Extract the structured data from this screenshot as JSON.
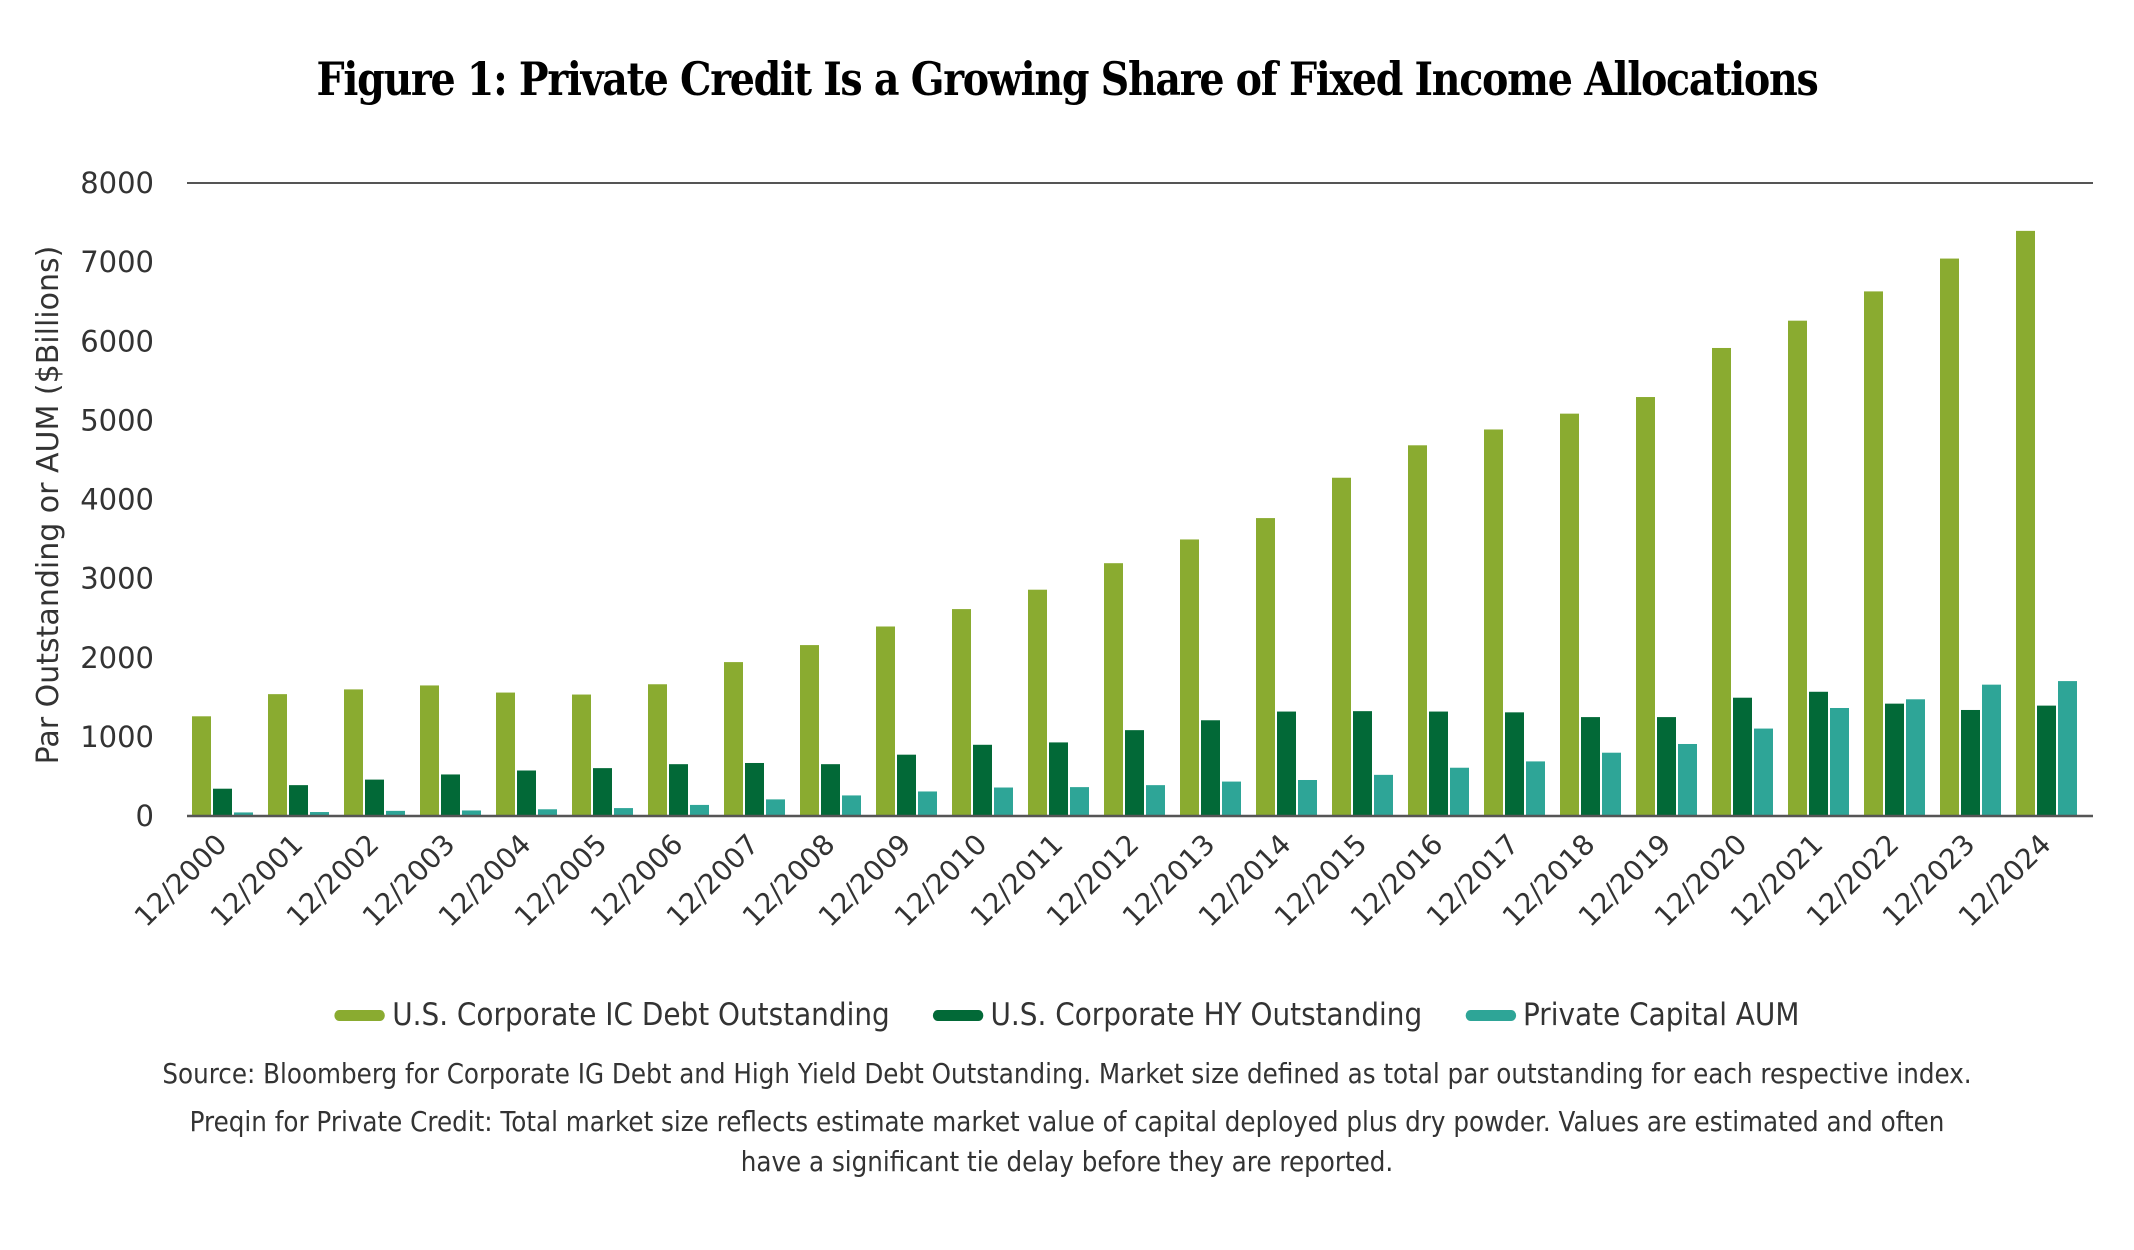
{
  "title": "Figure 1: Private Credit Is a Growing Share of Fixed Income Allocations",
  "colors": {
    "ig": "#8AAB30",
    "hy": "#026937",
    "pc": "#2EA597",
    "axis": "#555555",
    "text": "#333333"
  },
  "chart_data": {
    "type": "bar",
    "title": "Figure 1: Private Credit Is a Growing Share of Fixed Income Allocations",
    "xlabel": "",
    "ylabel": "Par Outstanding or AUM ($Billions)",
    "ylim": [
      0,
      8000
    ],
    "yticks": [
      0,
      1000,
      2000,
      3000,
      4000,
      5000,
      6000,
      7000,
      8000
    ],
    "grid": "top border line only",
    "legend": "bottom-center",
    "categories": [
      "12/2000",
      "12/2001",
      "12/2002",
      "12/2003",
      "12/2004",
      "12/2005",
      "12/2006",
      "12/2007",
      "12/2008",
      "12/2009",
      "12/2010",
      "12/2011",
      "12/2012",
      "12/2013",
      "12/2014",
      "12/2015",
      "12/2016",
      "12/2017",
      "12/2018",
      "12/2019",
      "12/2020",
      "12/2021",
      "12/2022",
      "12/2023",
      "12/2024"
    ],
    "series": [
      {
        "name": "U.S. Corporate IC Debt Outstanding",
        "key": "ig",
        "values": [
          1260,
          1540,
          1600,
          1650,
          1560,
          1535,
          1665,
          1945,
          2160,
          2395,
          2615,
          2860,
          3195,
          3495,
          3765,
          4275,
          4685,
          4885,
          5085,
          5295,
          5915,
          6260,
          6630,
          7045,
          7395
        ]
      },
      {
        "name": "U.S. Corporate HY Outstanding",
        "key": "hy",
        "values": [
          345,
          390,
          460,
          525,
          575,
          605,
          655,
          670,
          655,
          775,
          900,
          930,
          1085,
          1210,
          1320,
          1325,
          1320,
          1310,
          1250,
          1250,
          1495,
          1570,
          1420,
          1340,
          1395
        ]
      },
      {
        "name": "Private Capital AUM",
        "key": "pc",
        "values": [
          45,
          50,
          65,
          70,
          85,
          100,
          140,
          210,
          260,
          310,
          360,
          365,
          390,
          435,
          455,
          520,
          610,
          690,
          800,
          910,
          1105,
          1365,
          1475,
          1660,
          1705
        ]
      }
    ]
  },
  "legend": [
    {
      "label": "U.S. Corporate IC Debt Outstanding",
      "key": "ig"
    },
    {
      "label": "U.S. Corporate HY Outstanding",
      "key": "hy"
    },
    {
      "label": "Private Capital AUM",
      "key": "pc"
    }
  ],
  "source": {
    "line1": "Source: Bloomberg for Corporate IG Debt and High Yield Debt Outstanding. Market size defined as total par outstanding for each respective index.",
    "line2": "Preqin for Private Credit: Total market size reflects estimate market value of capital deployed plus dry powder. Values are estimated and often",
    "line3": "have a significant tie delay before they are reported."
  }
}
